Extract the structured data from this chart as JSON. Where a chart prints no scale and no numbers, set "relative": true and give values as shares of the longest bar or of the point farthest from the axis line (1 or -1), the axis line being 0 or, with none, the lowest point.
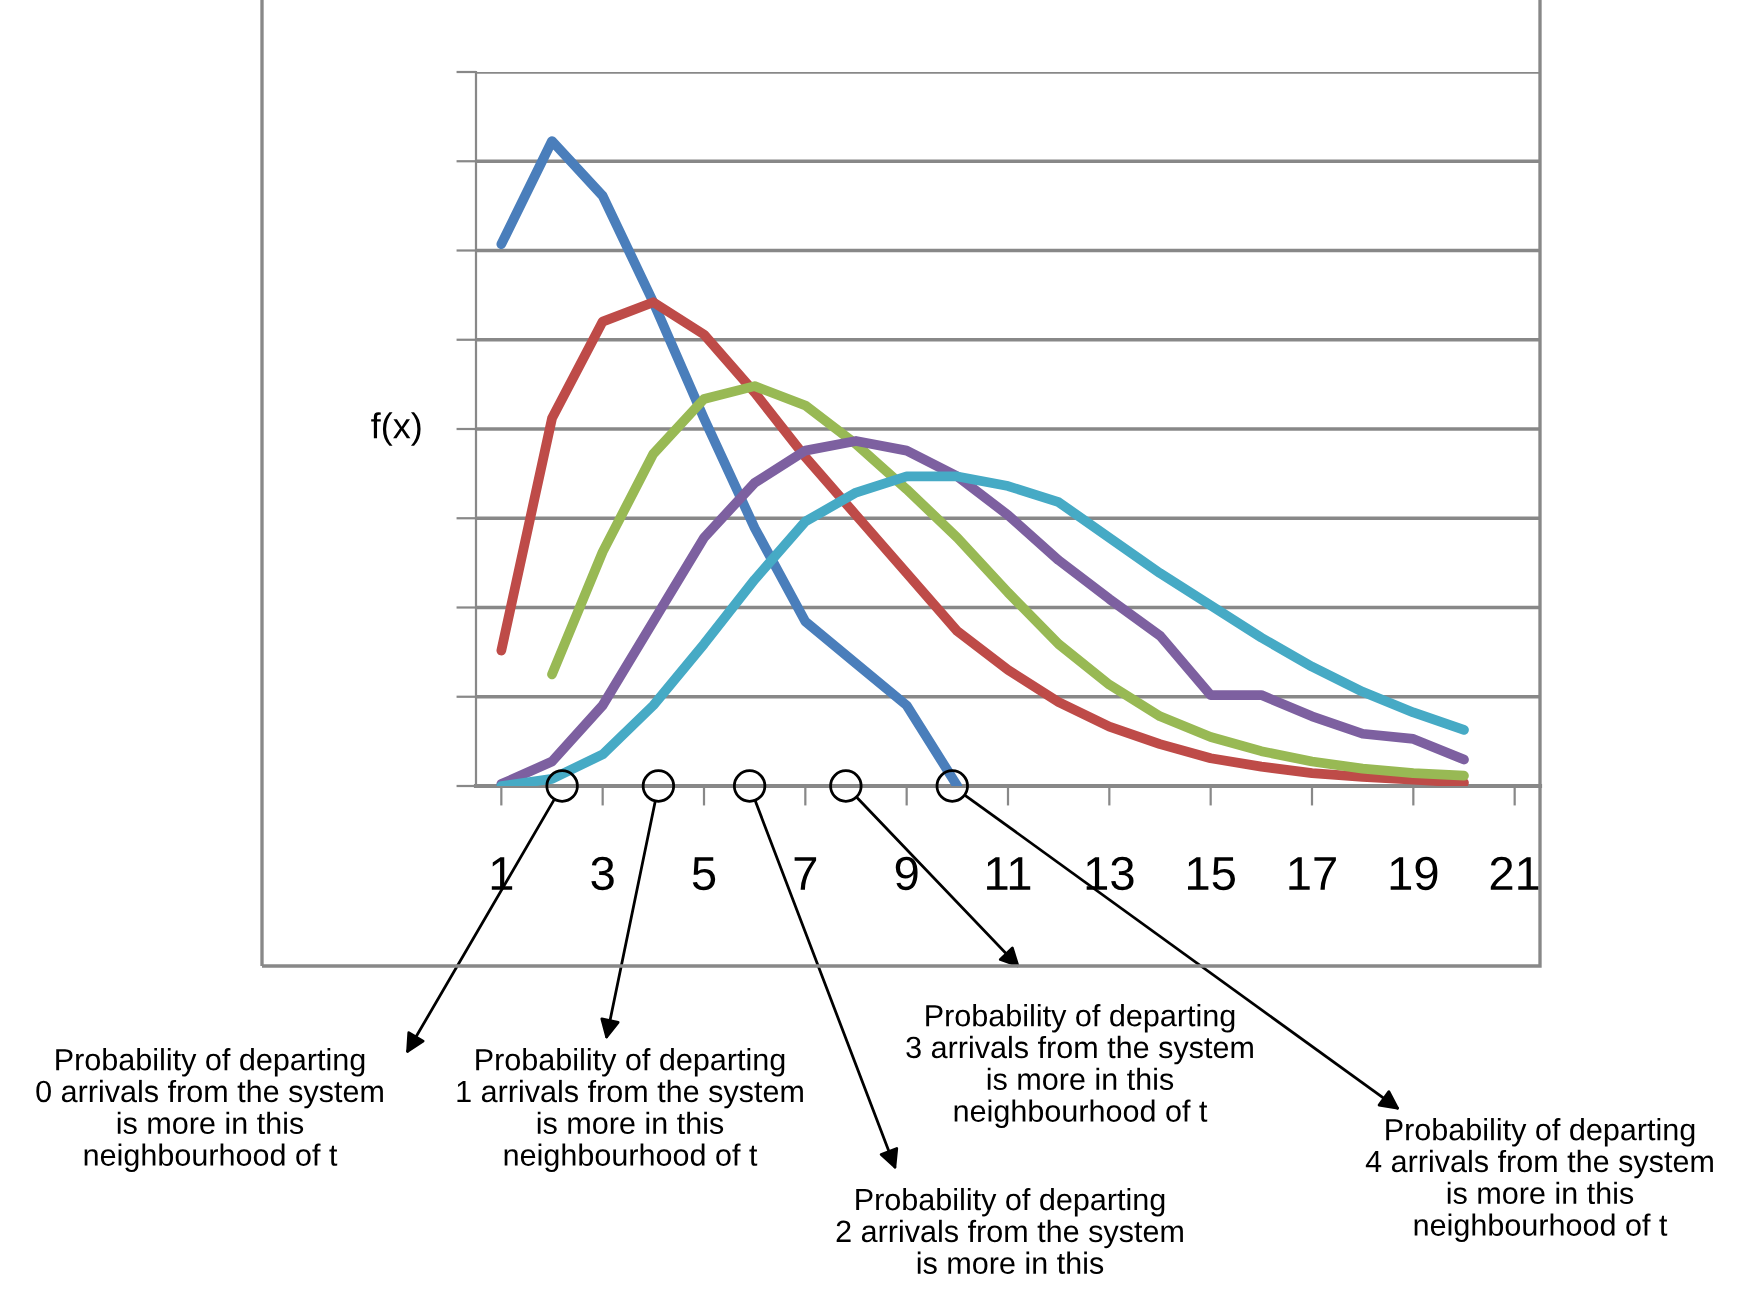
{
  "chart_data": {
    "type": "line",
    "relative": true,
    "ylabel": "f(x)",
    "grid": "y",
    "marker": "none",
    "line_style": "solid",
    "xlim": [
      0.5,
      21.5
    ],
    "xticks": [
      1,
      3,
      5,
      7,
      9,
      11,
      13,
      15,
      17,
      19,
      21
    ],
    "series": [
      {
        "color": "#4a7ebb",
        "x": [
          1,
          2,
          3,
          4,
          5,
          6,
          7,
          8,
          9,
          10
        ],
        "values": [
          0.84,
          1.0,
          0.915,
          0.75,
          0.57,
          0.4,
          0.255,
          0.19,
          0.125,
          0
        ]
      },
      {
        "color": "#be4b48",
        "x": [
          1,
          2,
          3,
          4,
          5,
          6,
          7,
          8,
          9,
          10,
          11,
          12,
          13,
          14,
          15,
          16,
          17,
          18,
          19,
          20
        ],
        "values": [
          0.21,
          0.57,
          0.72,
          0.75,
          0.7,
          0.61,
          0.51,
          0.42,
          0.33,
          0.24,
          0.18,
          0.13,
          0.092,
          0.065,
          0.043,
          0.03,
          0.02,
          0.014,
          0.01,
          0.005
        ]
      },
      {
        "color": "#98b954",
        "x": [
          2,
          3,
          4,
          5,
          6,
          7,
          8,
          9,
          10,
          11,
          12,
          13,
          14,
          15,
          16,
          17,
          18,
          19,
          20
        ],
        "values": [
          0.173,
          0.363,
          0.515,
          0.6,
          0.62,
          0.59,
          0.53,
          0.46,
          0.385,
          0.3,
          0.22,
          0.157,
          0.108,
          0.076,
          0.054,
          0.038,
          0.027,
          0.02,
          0.016
        ]
      },
      {
        "color": "#7d60a0",
        "x": [
          1,
          2,
          3,
          4,
          5,
          6,
          7,
          8,
          9,
          10,
          11,
          12,
          13,
          14,
          15,
          16,
          17,
          18,
          19,
          20
        ],
        "values": [
          0.003,
          0.038,
          0.125,
          0.255,
          0.385,
          0.47,
          0.52,
          0.535,
          0.52,
          0.48,
          0.42,
          0.35,
          0.29,
          0.233,
          0.141,
          0.141,
          0.108,
          0.081,
          0.073,
          0.041
        ]
      },
      {
        "color": "#46aac5",
        "x": [
          1,
          2,
          3,
          4,
          5,
          6,
          7,
          8,
          9,
          10,
          11,
          12,
          13,
          14,
          15,
          16,
          17,
          18,
          19,
          20
        ],
        "values": [
          0,
          0.011,
          0.049,
          0.125,
          0.22,
          0.32,
          0.41,
          0.455,
          0.48,
          0.48,
          0.465,
          0.44,
          0.385,
          0.33,
          0.28,
          0.23,
          0.185,
          0.146,
          0.114,
          0.087
        ]
      }
    ],
    "annotations": [
      {
        "text": "Probability of departing\n0 arrivals from the system\nis more in this\nneighbourhood of t",
        "x": 2.2,
        "y": 0
      },
      {
        "text": "Probability of departing\n1 arrivals from the system\nis more in this\nneighbourhood of t",
        "x": 4.1,
        "y": 0
      },
      {
        "text": "Probability of departing\n2 arrivals from the system\nis more in this",
        "x": 5.9,
        "y": 0
      },
      {
        "text": "Probability of departing\n3 arrivals from the system\nis more in this\nneighbourhood of t",
        "x": 7.8,
        "y": 0
      },
      {
        "text": "Probability of departing\n4 arrivals from the system\nis more in this\nneighbourhood of t",
        "x": 9.9,
        "y": 0
      }
    ]
  }
}
